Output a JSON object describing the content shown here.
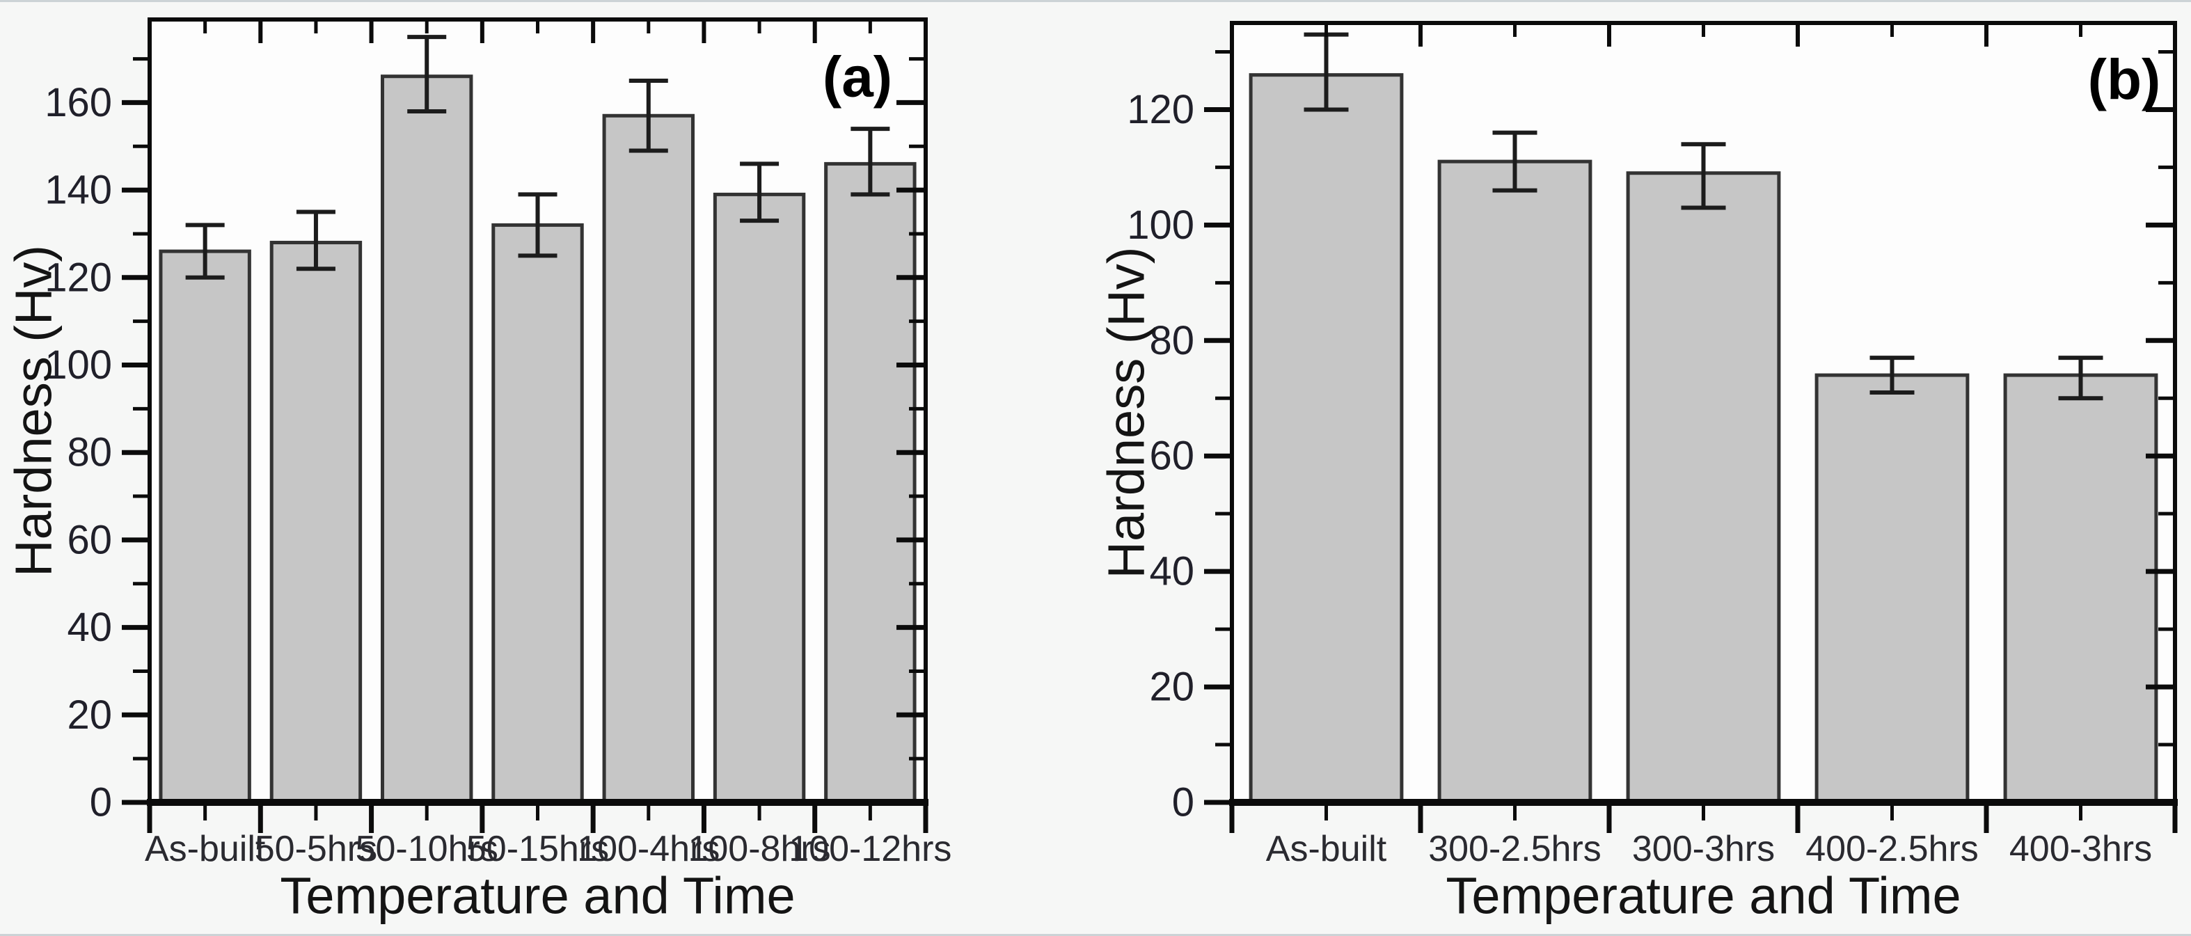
{
  "figure": {
    "background": "#f6f7f6",
    "edge_line_color": "#ccd3d6",
    "plot_background": "#fdfdfd"
  },
  "chart_data": [
    {
      "type": "bar",
      "panel_label": "(a)",
      "xlabel": "Temperature and Time",
      "ylabel": "Hardness (Hv)",
      "categories": [
        "As-built",
        "50-5hrs",
        "50-10hrs",
        "50-15hrs",
        "100-4hrs",
        "100-8hrs",
        "100-12hrs"
      ],
      "values": [
        126,
        128,
        166,
        132,
        157,
        139,
        146
      ],
      "error_low": [
        120,
        122,
        158,
        125,
        149,
        133,
        139
      ],
      "error_high": [
        132,
        135,
        175,
        139,
        165,
        146,
        154
      ],
      "y_major_ticks": [
        0,
        20,
        40,
        60,
        80,
        100,
        120,
        140,
        160
      ],
      "y_minor_ticks": [
        10,
        30,
        50,
        70,
        90,
        110,
        130,
        150,
        170
      ],
      "ylim": [
        0,
        179
      ],
      "grid": false,
      "legend": "none",
      "bar_fill": "#c6c6c6",
      "bar_stroke": "#333333",
      "error_color": "#1c1c1c",
      "axis_color": "#0b0b0b",
      "tick_label_color": "#20202a",
      "category_label_color": "#2a2a30",
      "axis_title_color": "#141414",
      "panel_label_color": "#000000"
    },
    {
      "type": "bar",
      "panel_label": "(b)",
      "xlabel": "Temperature and Time",
      "ylabel": "Hardness (Hv)",
      "categories": [
        "As-built",
        "300-2.5hrs",
        "300-3hrs",
        "400-2.5hrs",
        "400-3hrs"
      ],
      "values": [
        126,
        111,
        109,
        74,
        74
      ],
      "error_low": [
        120,
        106,
        103,
        71,
        70
      ],
      "error_high": [
        133,
        116,
        114,
        77,
        77
      ],
      "y_major_ticks": [
        0,
        20,
        40,
        60,
        80,
        100,
        120
      ],
      "y_minor_ticks": [
        10,
        30,
        50,
        70,
        90,
        110,
        130
      ],
      "ylim": [
        0,
        135
      ],
      "grid": false,
      "legend": "none",
      "bar_fill": "#c6c6c6",
      "bar_stroke": "#333333",
      "error_color": "#1c1c1c",
      "axis_color": "#0b0b0b",
      "tick_label_color": "#20202a",
      "category_label_color": "#2a2a30",
      "axis_title_color": "#141414",
      "panel_label_color": "#000000"
    }
  ]
}
